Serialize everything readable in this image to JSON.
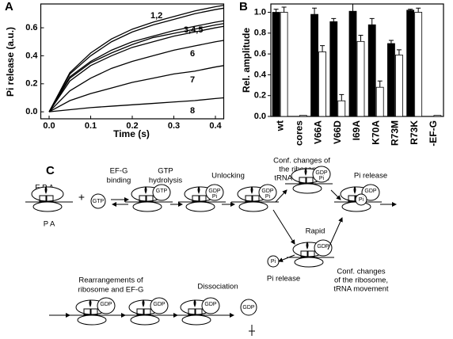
{
  "chart_data": [
    {
      "type": "line",
      "panel": "A",
      "xlabel": "Time (s)",
      "ylabel": "Pi release (a.u.)",
      "x": [
        0,
        0.05,
        0.1,
        0.15,
        0.2,
        0.25,
        0.3,
        0.35,
        0.4,
        0.42
      ],
      "series": [
        {
          "color": "#000000",
          "values": [
            0,
            0.28,
            0.42,
            0.52,
            0.59,
            0.64,
            0.68,
            0.72,
            0.75,
            0.76
          ]
        },
        {
          "color": "#000000",
          "values": [
            0,
            0.27,
            0.4,
            0.5,
            0.57,
            0.62,
            0.66,
            0.7,
            0.73,
            0.74
          ]
        },
        {
          "color": "#000000",
          "values": [
            0,
            0.25,
            0.36,
            0.44,
            0.5,
            0.54,
            0.58,
            0.61,
            0.64,
            0.65
          ]
        },
        {
          "color": "#000000",
          "values": [
            0,
            0.24,
            0.35,
            0.42,
            0.48,
            0.53,
            0.56,
            0.59,
            0.62,
            0.63
          ]
        },
        {
          "color": "#000000",
          "values": [
            0,
            0.22,
            0.33,
            0.4,
            0.46,
            0.5,
            0.54,
            0.57,
            0.6,
            0.61
          ]
        },
        {
          "color": "#000000",
          "values": [
            0,
            0.15,
            0.24,
            0.31,
            0.36,
            0.4,
            0.44,
            0.47,
            0.5,
            0.51
          ]
        },
        {
          "color": "#000000",
          "values": [
            0,
            0.08,
            0.13,
            0.17,
            0.21,
            0.24,
            0.27,
            0.29,
            0.32,
            0.33
          ]
        },
        {
          "color": "#000000",
          "values": [
            0,
            0.015,
            0.03,
            0.04,
            0.05,
            0.06,
            0.07,
            0.08,
            0.095,
            0.1
          ]
        }
      ],
      "annotations": [
        "1,2",
        "3,4,5",
        "6",
        "7",
        "8"
      ],
      "xlim": [
        -0.02,
        0.42
      ],
      "ylim": [
        -0.05,
        0.77
      ],
      "xticks": [
        {
          "value": 0,
          "label": "0.0"
        },
        {
          "value": 0.1,
          "label": "0.1"
        },
        {
          "value": 0.2,
          "label": "0.2"
        },
        {
          "value": 0.3,
          "label": "0.3"
        },
        {
          "value": 0.4,
          "label": "0.4"
        }
      ],
      "yticks": [
        {
          "value": 0,
          "label": "0.0"
        },
        {
          "value": 0.2,
          "label": "0.2"
        },
        {
          "value": 0.4,
          "label": "0.4"
        },
        {
          "value": 0.6,
          "label": "0.6"
        }
      ]
    },
    {
      "type": "bar",
      "panel": "B",
      "ylabel": "Rel. amplitude",
      "categories": [
        "wt",
        "cores",
        "V66A",
        "V66D",
        "I69A",
        "K70A",
        "R73M",
        "R73K",
        "-EF-G"
      ],
      "series": [
        {
          "color": "#000000",
          "values": [
            1.0,
            null,
            0.98,
            0.91,
            1.01,
            0.88,
            0.7,
            1.02,
            null
          ],
          "errors": [
            0.03,
            null,
            0.06,
            0.03,
            0.07,
            0.06,
            0.03,
            0.01,
            null
          ]
        },
        {
          "color": "#ffffff",
          "values": [
            1.0,
            0.01,
            0.62,
            0.15,
            0.72,
            0.28,
            0.59,
            1.0,
            0.01
          ],
          "errors": [
            0.05,
            null,
            0.06,
            0.06,
            0.06,
            0.06,
            0.05,
            0.04,
            null
          ]
        }
      ],
      "ylim": [
        0,
        1.08
      ],
      "yticks": [
        {
          "value": 0,
          "label": "0.0"
        },
        {
          "value": 0.2,
          "label": "0.2"
        },
        {
          "value": 0.4,
          "label": "0.4"
        },
        {
          "value": 0.6,
          "label": "0.6"
        },
        {
          "value": 0.8,
          "label": "0.8"
        },
        {
          "value": 1.0,
          "label": "1.0"
        }
      ]
    }
  ],
  "diagram": {
    "panel": "C",
    "texts": [
      "E P A",
      "P A",
      "+",
      "EF-G",
      "binding",
      "GTP",
      "hydrolysis",
      "Unlocking",
      "Conf. changes of",
      "the ribosome,",
      "tRNA movement",
      "Pi release",
      "Rapid",
      "Pi release",
      "Conf. changes",
      "of the ribosome,",
      "tRNA movement",
      "Rearrangements of",
      "ribosome and EF-G",
      "Dissociation"
    ],
    "icons": [
      "GTP",
      "GTP",
      "GDP",
      "Pi",
      "GDP",
      "Pi",
      "GDP",
      "Pi",
      "GDP",
      "GDP",
      "GDP",
      "GDP",
      "GDP",
      "GDP",
      "Pi",
      "Pi"
    ]
  }
}
